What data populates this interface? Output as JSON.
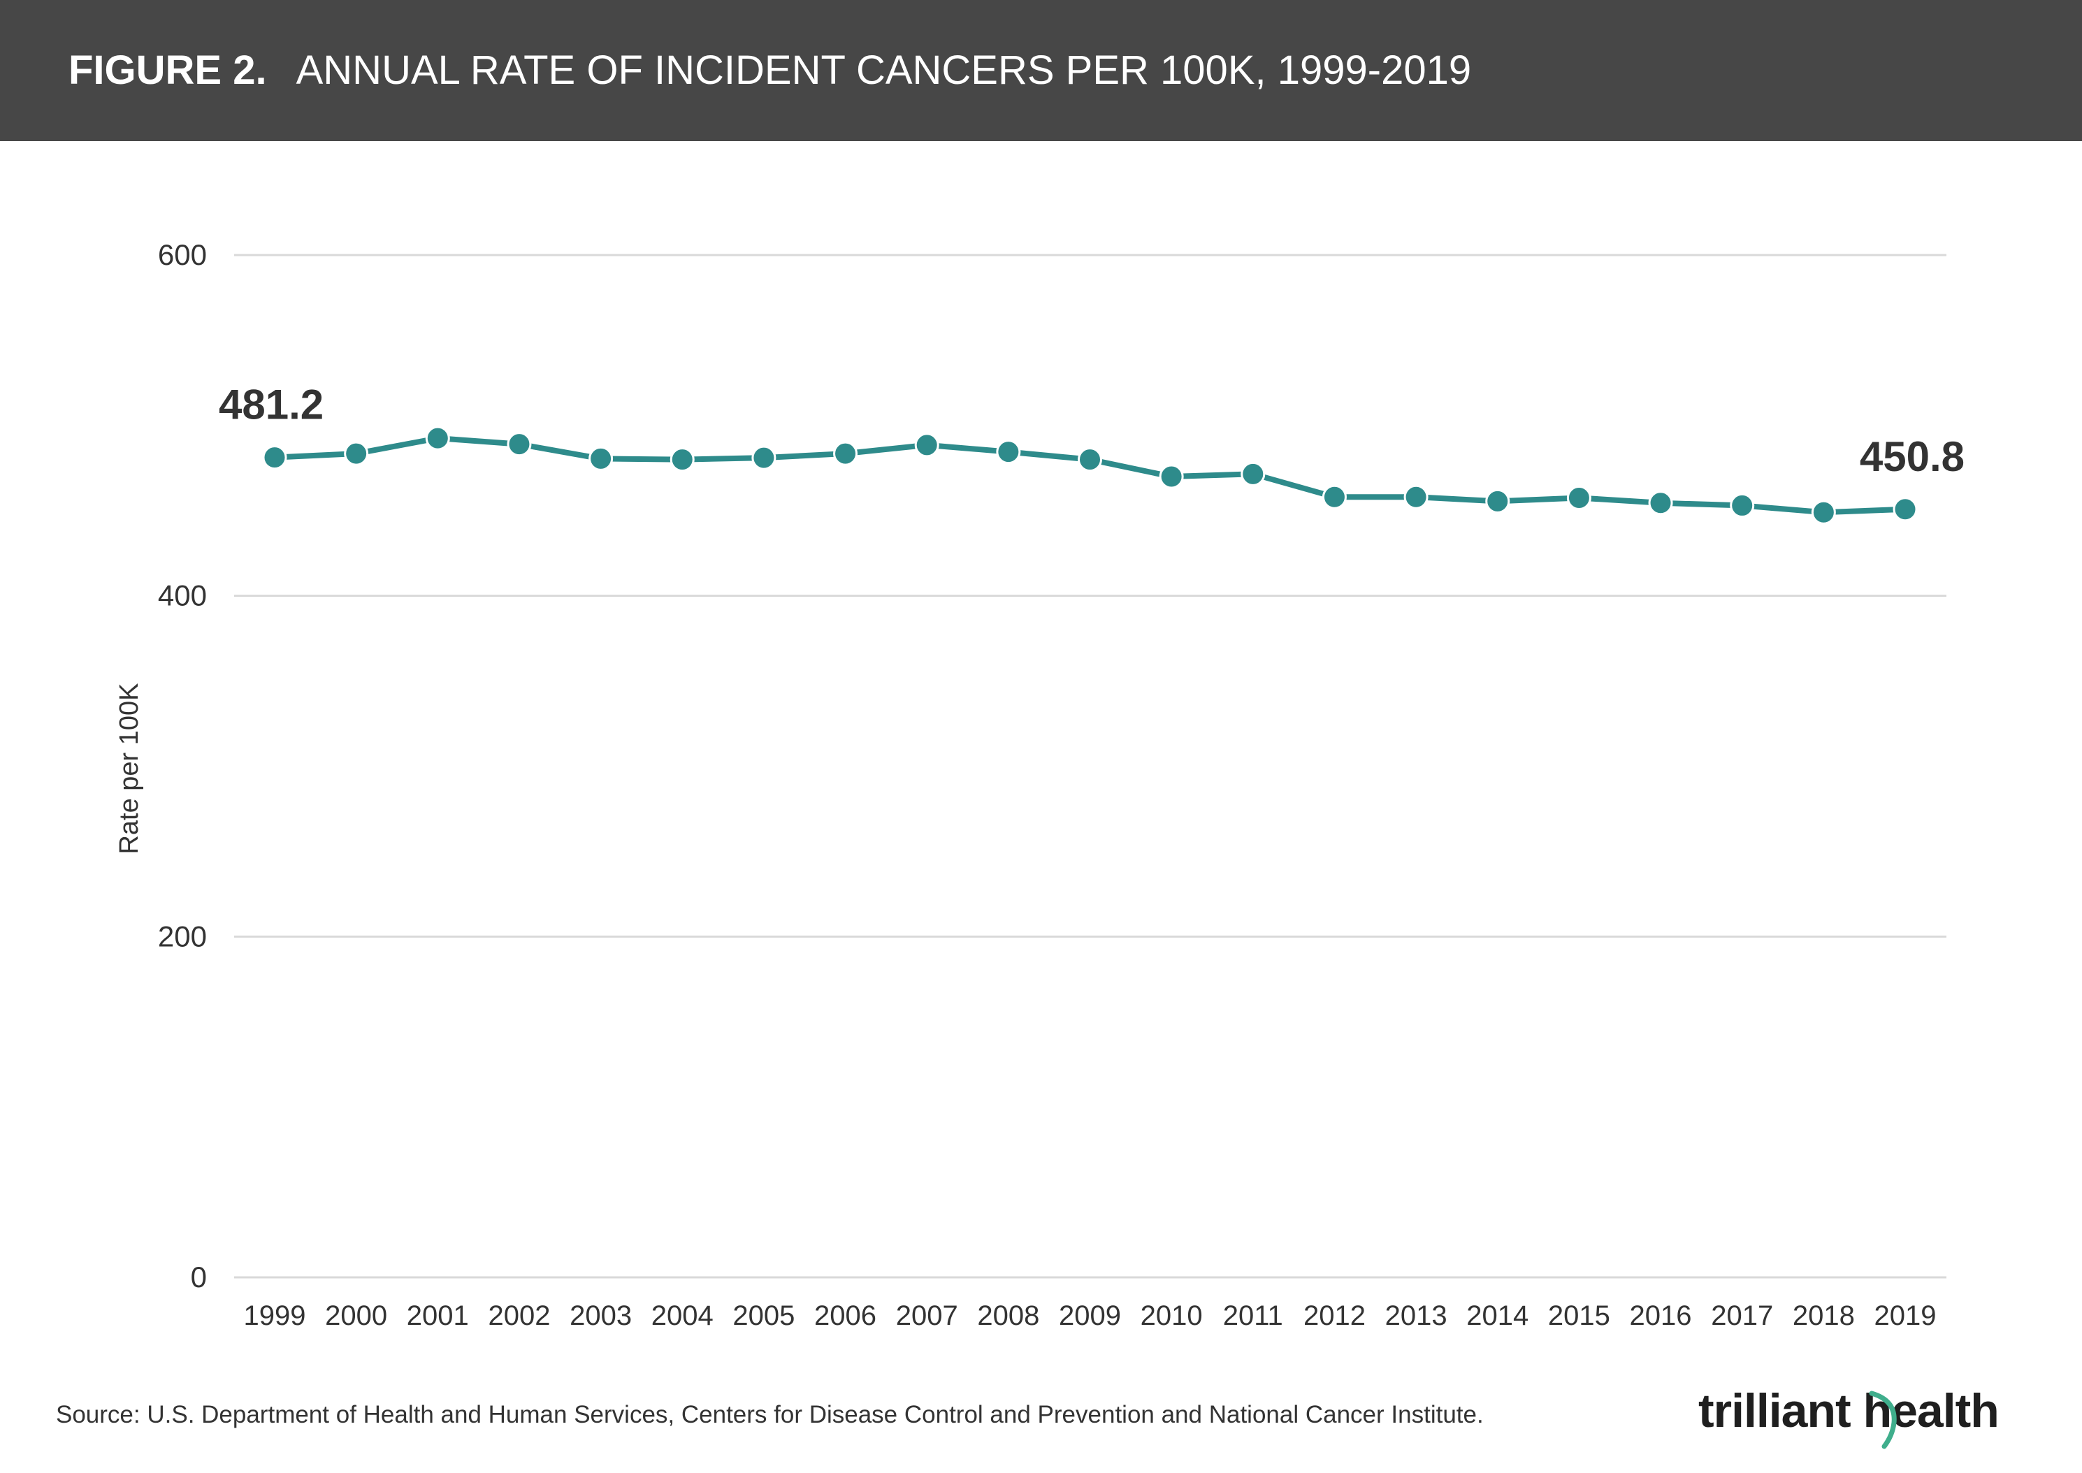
{
  "header": {
    "figure_label": "FIGURE 2.",
    "title": "ANNUAL RATE OF INCIDENT CANCERS PER 100K, 1999-2019"
  },
  "source": "Source: U.S. Department of Health and Human Services, Centers for Disease Control and Prevention and National Cancer Institute.",
  "brand": {
    "name": "trilliant health",
    "text_color": "#1f1f1f",
    "accent_color": "#3fae8c"
  },
  "colors": {
    "header_bg": "#474747",
    "series": "#2e8b8b",
    "grid": "#d9d9d9",
    "text": "#333333"
  },
  "chart_data": {
    "type": "line",
    "title": "ANNUAL RATE OF INCIDENT CANCERS PER 100K, 1999-2019",
    "xlabel": "",
    "ylabel": "Rate per 100K",
    "ylim": [
      0,
      600
    ],
    "yticks": [
      0,
      200,
      400,
      600
    ],
    "grid": true,
    "legend": "none",
    "categories": [
      "1999",
      "2000",
      "2001",
      "2002",
      "2003",
      "2004",
      "2005",
      "2006",
      "2007",
      "2008",
      "2009",
      "2010",
      "2011",
      "2012",
      "2013",
      "2014",
      "2015",
      "2016",
      "2017",
      "2018",
      "2019"
    ],
    "series": [
      {
        "values": [
          481.2,
          483.5,
          492.5,
          489.0,
          480.5,
          480.0,
          481.0,
          483.5,
          488.5,
          484.5,
          480.0,
          470.0,
          471.5,
          458.0,
          458.0,
          455.5,
          457.5,
          454.5,
          453.0,
          449.0,
          450.8
        ]
      }
    ],
    "annotations": [
      {
        "index": 0,
        "text": "481.2"
      },
      {
        "index": 20,
        "text": "450.8"
      }
    ]
  }
}
